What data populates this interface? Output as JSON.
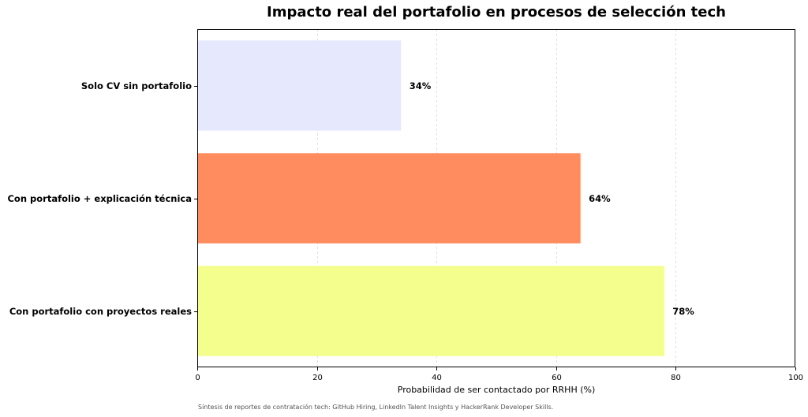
{
  "chart_data": {
    "type": "bar",
    "orientation": "horizontal",
    "title": "Impacto real del portafolio en procesos de selección tech",
    "xlabel": "Probabilidad de ser contactado por RRHH (%)",
    "ylabel": "",
    "xlim": [
      0,
      100
    ],
    "xticks": [
      0,
      20,
      40,
      60,
      80,
      100
    ],
    "grid": "vertical dashed",
    "categories": [
      "Solo CV sin portafolio",
      "Con portafolio + explicación técnica",
      "Con portafolio con proyectos reales"
    ],
    "values": [
      34,
      64,
      78
    ],
    "value_labels": [
      "34%",
      "64%",
      "78%"
    ],
    "colors": [
      "#e6e8fd",
      "#ff8c5f",
      "#f4fe8c"
    ]
  },
  "footnote": "Síntesis de reportes de contratación tech: GitHub Hiring, LinkedIn Talent Insights y HackerRank Developer Skills."
}
